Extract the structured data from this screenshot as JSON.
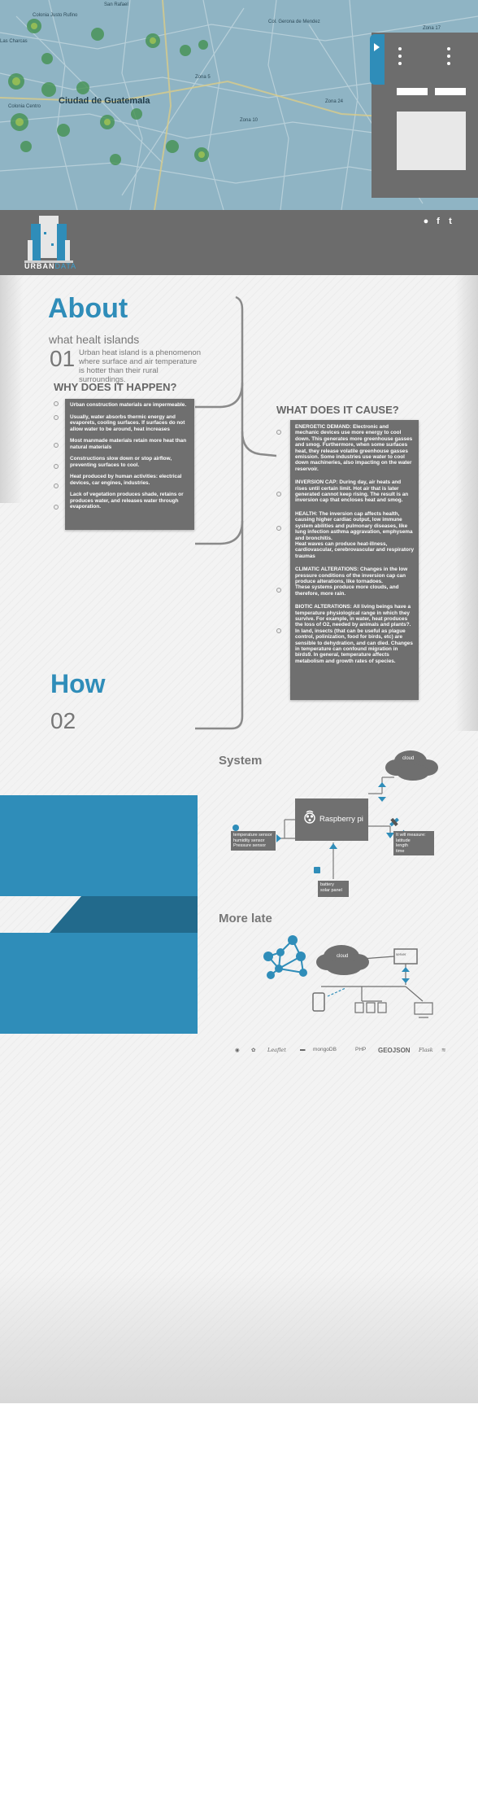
{
  "map": {
    "city_label": "Ciudad de Guatemala",
    "labels": [
      {
        "text": "San Rafael"
      },
      {
        "text": "Colonia Justo Rufino"
      },
      {
        "text": "Las Charcas"
      },
      {
        "text": "Zona 17"
      },
      {
        "text": "Zona 5"
      },
      {
        "text": "Zona 10"
      },
      {
        "text": "Zona 24"
      },
      {
        "text": "Col. Gerona de Mendez"
      },
      {
        "text": "Colonia Centro"
      }
    ]
  },
  "header": {
    "logo_urban": "URBAN",
    "logo_data": "DATA",
    "social": [
      {
        "name": "github-icon",
        "glyph": "●"
      },
      {
        "name": "facebook-icon",
        "glyph": "f"
      },
      {
        "name": "twitter-icon",
        "glyph": "t"
      }
    ]
  },
  "about": {
    "title": "About",
    "subtitle": "what healt islands",
    "number": "01",
    "description": "Urban heat island is a phenomenon where surface and air temperature is hotter than their rural surroundings.",
    "why_title": "WHY DOES IT HAPPEN?",
    "why_items": [
      "Urban construction materials are impermeable.",
      "Usually, water absorbs thermic energy and evaporets, cooling surfaces. If surfaces do not allow water to be around, heat increases",
      "Most manmade materials retain more heat than natural materials",
      "Constructions slow down or stop airflow, preventing surfaces to cool.",
      "Heat produced by human activities: electrical devices, car engines, industries.",
      "Lack of vegetation produces shade, retains or produces water, and releases water through evaporation."
    ],
    "cause_title": "WHAT DOES IT CAUSE?",
    "cause_items": [
      "ENERGETIC DEMAND: Electronic and mechanic devices use more energy to cool down. This generates more greenhouse gasses and smog. Furthermore, when some surfaces heat, they release volatile greenhouse gasses emission. Some industries use water to cool down machineries, also impacting on the water reservoir.",
      "INVERSION CAP: During day, air heats and rises until certain limit. Hot air that is later generated cannot keep rising. The result is an inversion cap that encloses heat and smog.",
      "HEALTH: The inversion cap affects health, causing higher cardiac output, low immune system abilities and pulmonary diseases, like lung infection asthma aggravation, emphysema and bronchitis.\nHeat waves can produce heat-illness, cardiovascular, cerebrovascular and respiratory traumas",
      "CLIMATIC ALTERATIONS: Changes in the low pressure conditions of the inversion cap can produce alterations, like tornadoes.\nThese systems produce more clouds, and therefore, more rain.",
      "BIOTIC ALTERATIONS: All living beings have a temperature physiological range in which they survive. For example, in water, heat produces the loss of O2, needed by animals and plants?. In land, insects (that can be useful as plague control, polinization, food for birds, etc) are sensible to dehydration, and can died. Changes in temperature can confound migration in birds9. In general, temperature affects metabolism and growth rates of species."
    ]
  },
  "how": {
    "title": "How",
    "number": "02"
  },
  "system": {
    "title": "System",
    "rpi_label": "Raspberry pi",
    "cloud_label": "cloud",
    "sensors": [
      "temperature sensor",
      "humidity sensor",
      "Pressure sensor"
    ],
    "measures": [
      "It will measure:",
      "latitude",
      "length",
      "time"
    ],
    "battery": [
      "battery",
      "solar panel"
    ]
  },
  "more": {
    "title": "More late",
    "cloud_label": "cloud",
    "server_label": "server"
  },
  "tech_logos": [
    "",
    "",
    "Leaflet",
    "",
    "mongoDB",
    "PHP",
    "GEOJSON",
    "Flask",
    ""
  ],
  "colors": {
    "accent": "#2f8db9",
    "dark_accent": "#226a8c",
    "panel_gray": "#6f6f6f",
    "header_gray": "#6c6c6c"
  }
}
